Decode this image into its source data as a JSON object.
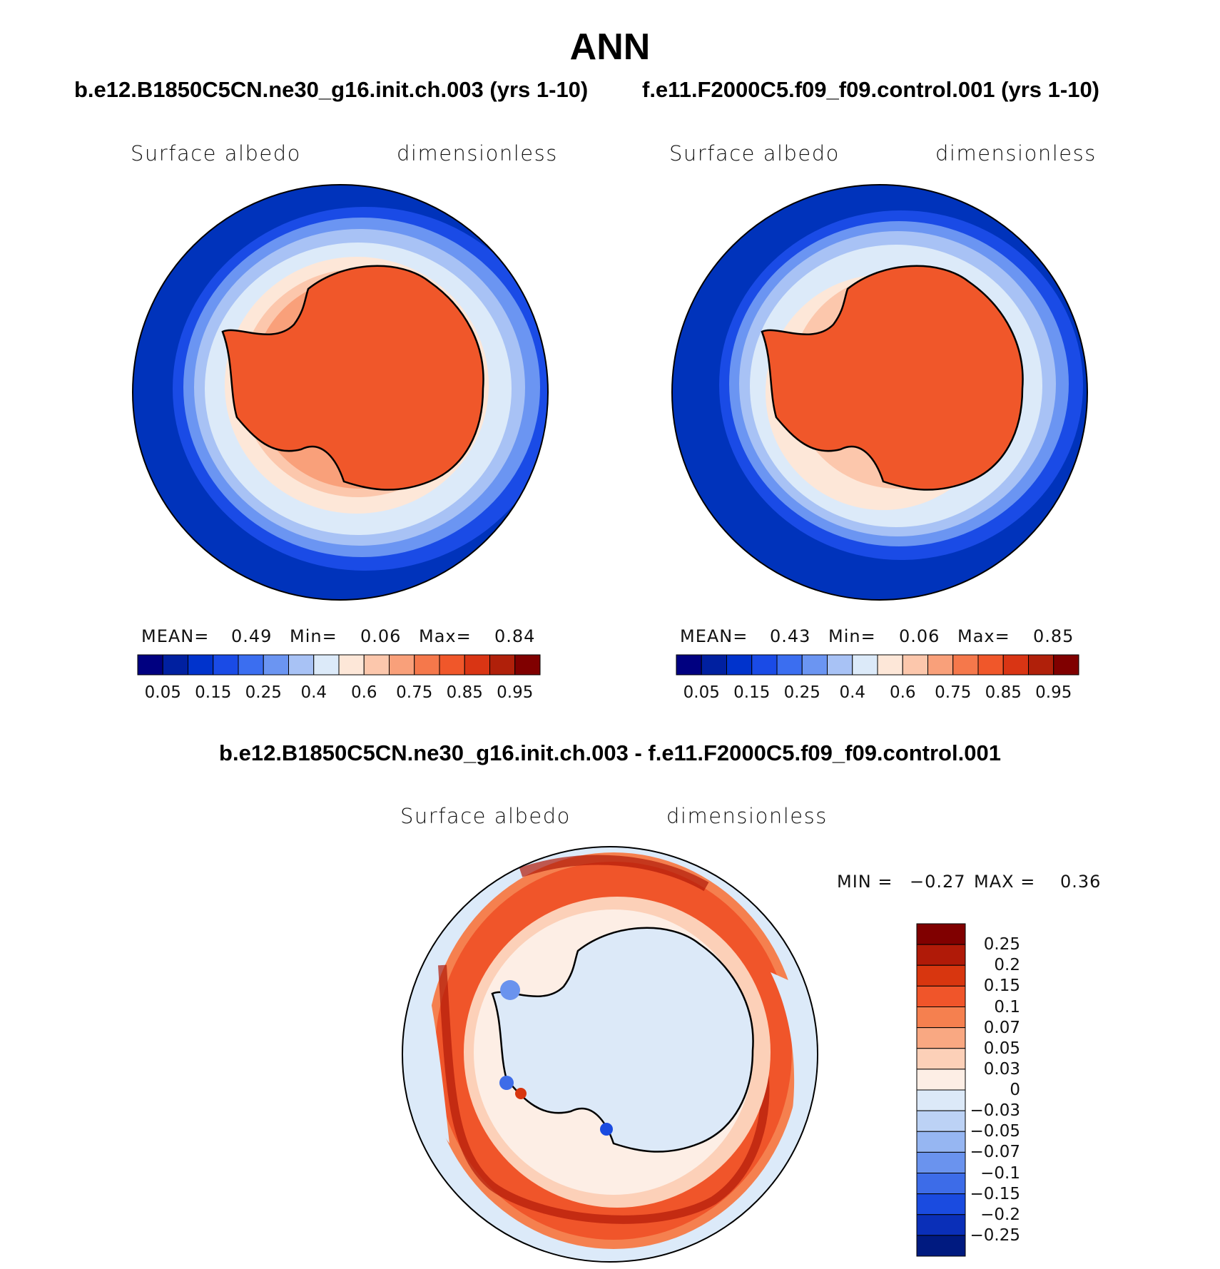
{
  "title": "ANN",
  "panel_left": {
    "case": "b.e12.B1850C5CN.ne30_g16.init.ch.003 (yrs 1-10)",
    "variable": "Surface albedo",
    "units": "dimensionless",
    "stats": {
      "mean_label": "MEAN=",
      "mean": "0.49",
      "min_label": "Min=",
      "min": "0.06",
      "max_label": "Max=",
      "max": "0.84"
    }
  },
  "panel_right": {
    "case": "f.e11.F2000C5.f09_f09.control.001 (yrs 1-10)",
    "variable": "Surface albedo",
    "units": "dimensionless",
    "stats": {
      "mean_label": "MEAN=",
      "mean": "0.43",
      "min_label": "Min=",
      "min": "0.06",
      "max_label": "Max=",
      "max": "0.85"
    }
  },
  "panel_diff": {
    "case": "b.e12.B1850C5CN.ne30_g16.init.ch.003 - f.e11.F2000C5.f09_f09.control.001",
    "variable": "Surface albedo",
    "units": "dimensionless",
    "stats": {
      "min_label": "MIN =",
      "min": "−0.27",
      "max_label": "MAX =",
      "max": "0.36"
    }
  },
  "chart_data": [
    {
      "type": "heatmap",
      "projection": "south-polar-stereographic",
      "title": "b.e12.B1850C5CN.ne30_g16.init.ch.003 (yrs 1-10)",
      "variable": "Surface albedo",
      "units": "dimensionless",
      "colorbar_ticks": [
        "0.05",
        "0.15",
        "0.25",
        "0.4",
        "0.6",
        "0.75",
        "0.85",
        "0.95"
      ],
      "colorbar_colors": [
        "#000080",
        "#0020a0",
        "#0033cc",
        "#1a4be6",
        "#3b6ef0",
        "#6b95f2",
        "#a8c2f5",
        "#dceaf9",
        "#fde7d8",
        "#fcc7ac",
        "#f9a07a",
        "#f5784b",
        "#f0572a",
        "#d93514",
        "#b0200a",
        "#800000"
      ],
      "mean": 0.49,
      "min": 0.06,
      "max": 0.84
    },
    {
      "type": "heatmap",
      "projection": "south-polar-stereographic",
      "title": "f.e11.F2000C5.f09_f09.control.001 (yrs 1-10)",
      "variable": "Surface albedo",
      "units": "dimensionless",
      "colorbar_ticks": [
        "0.05",
        "0.15",
        "0.25",
        "0.4",
        "0.6",
        "0.75",
        "0.85",
        "0.95"
      ],
      "colorbar_colors": [
        "#000080",
        "#0020a0",
        "#0033cc",
        "#1a4be6",
        "#3b6ef0",
        "#6b95f2",
        "#a8c2f5",
        "#dceaf9",
        "#fde7d8",
        "#fcc7ac",
        "#f9a07a",
        "#f5784b",
        "#f0572a",
        "#d93514",
        "#b0200a",
        "#800000"
      ],
      "mean": 0.43,
      "min": 0.06,
      "max": 0.85
    },
    {
      "type": "heatmap",
      "projection": "south-polar-stereographic",
      "title": "b.e12.B1850C5CN.ne30_g16.init.ch.003 - f.e11.F2000C5.f09_f09.control.001",
      "variable": "Surface albedo",
      "units": "dimensionless",
      "colorbar_ticks": [
        "0.25",
        "0.2",
        "0.15",
        "0.1",
        "0.07",
        "0.05",
        "0.03",
        "0",
        "−0.03",
        "−0.05",
        "−0.07",
        "−0.1",
        "−0.15",
        "−0.2",
        "−0.25"
      ],
      "colorbar_colors": [
        "#800000",
        "#b01a08",
        "#d8360f",
        "#f0552a",
        "#f5804f",
        "#f9a882",
        "#fcd0b8",
        "#fdeee5",
        "#dce9f8",
        "#bcd2f5",
        "#96b6f2",
        "#6a93ee",
        "#3d6ce8",
        "#1a4be0",
        "#0a2fb8",
        "#001a80"
      ],
      "min": -0.27,
      "max": 0.36
    }
  ]
}
